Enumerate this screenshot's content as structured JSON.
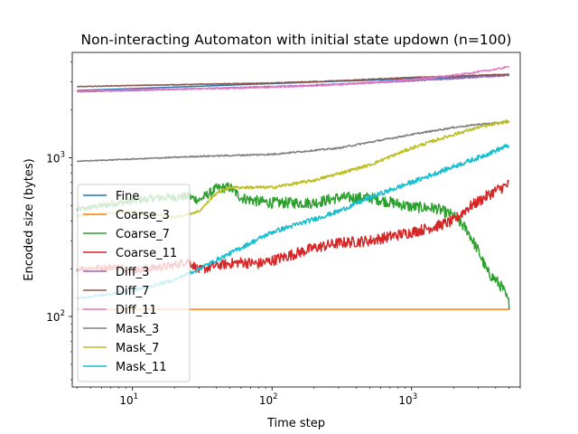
{
  "chart_data": {
    "type": "line",
    "title": "Non-interacting Automaton with initial state updown (n=100)",
    "xlabel": "Time step",
    "ylabel": "Encoded size (bytes)",
    "xscale": "log",
    "yscale": "log",
    "xlim": [
      3.7,
      6000
    ],
    "ylim": [
      36,
      4600
    ],
    "xticks": [
      {
        "value": 10,
        "base": "10",
        "exp": "1"
      },
      {
        "value": 100,
        "base": "10",
        "exp": "2"
      },
      {
        "value": 1000,
        "base": "10",
        "exp": "3"
      }
    ],
    "yticks": [
      {
        "value": 100,
        "base": "10",
        "exp": "2"
      },
      {
        "value": 1000,
        "base": "10",
        "exp": "3"
      }
    ],
    "grid": false,
    "legend_position": "lower-left",
    "series": [
      {
        "name": "Fine",
        "color": "#1f77b4",
        "noise": 0,
        "x": [
          4,
          10,
          100,
          1000,
          5000
        ],
        "y": [
          2650,
          2700,
          2850,
          3150,
          3300
        ]
      },
      {
        "name": "Coarse_3",
        "color": "#ff7f0e",
        "noise": 0,
        "x": [
          4,
          5000
        ],
        "y": [
          111,
          111
        ]
      },
      {
        "name": "Coarse_7",
        "color": "#2ca02c",
        "noise": 0.07,
        "x": [
          4,
          8,
          15,
          25,
          30,
          40,
          50,
          60,
          80,
          100,
          200,
          300,
          500,
          1000,
          1500,
          2000,
          2500,
          3000,
          3500,
          4000,
          4500,
          5000
        ],
        "y": [
          470,
          520,
          560,
          570,
          540,
          640,
          650,
          560,
          530,
          520,
          520,
          560,
          560,
          490,
          480,
          430,
          350,
          260,
          190,
          170,
          150,
          120
        ]
      },
      {
        "name": "Coarse_11",
        "color": "#d62728",
        "noise": 0.07,
        "x": [
          4,
          8,
          10,
          20,
          25,
          30,
          40,
          60,
          80,
          100,
          200,
          300,
          500,
          1000,
          1500,
          2000,
          2500,
          3000,
          4000,
          5000
        ],
        "y": [
          200,
          205,
          195,
          210,
          225,
          195,
          210,
          220,
          215,
          225,
          270,
          290,
          300,
          340,
          370,
          400,
          480,
          530,
          620,
          680
        ]
      },
      {
        "name": "Diff_3",
        "color": "#9467bd",
        "noise": 0.008,
        "x": [
          4,
          10,
          30,
          100,
          300,
          1000,
          2000,
          5000
        ],
        "y": [
          2600,
          2650,
          2720,
          2800,
          2900,
          3050,
          3150,
          3300
        ]
      },
      {
        "name": "Diff_7",
        "color": "#8c564b",
        "noise": 0.006,
        "x": [
          4,
          10,
          30,
          100,
          300,
          1000,
          3000,
          5000
        ],
        "y": [
          2800,
          2850,
          2900,
          2950,
          3050,
          3200,
          3300,
          3350
        ]
      },
      {
        "name": "Diff_11",
        "color": "#e377c2",
        "noise": 0.01,
        "x": [
          4,
          10,
          30,
          100,
          300,
          1000,
          2000,
          4000,
          5000
        ],
        "y": [
          2620,
          2680,
          2720,
          2780,
          2880,
          3100,
          3300,
          3600,
          3750
        ]
      },
      {
        "name": "Mask_3",
        "color": "#7f7f7f",
        "noise": 0.01,
        "x": [
          4,
          10,
          30,
          100,
          300,
          1000,
          2000,
          3000,
          5000
        ],
        "y": [
          950,
          980,
          1020,
          1050,
          1150,
          1400,
          1550,
          1620,
          1680
        ]
      },
      {
        "name": "Mask_7",
        "color": "#bcbd22",
        "noise": 0.02,
        "x": [
          4,
          10,
          20,
          30,
          40,
          50,
          100,
          200,
          500,
          1000,
          2000,
          3000,
          5000
        ],
        "y": [
          430,
          460,
          420,
          460,
          600,
          650,
          650,
          720,
          900,
          1150,
          1400,
          1550,
          1700
        ]
      },
      {
        "name": "Mask_11",
        "color": "#17becf",
        "noise": 0.03,
        "x": [
          4,
          10,
          20,
          30,
          50,
          100,
          200,
          300,
          500,
          1000,
          2000,
          3000,
          5000
        ],
        "y": [
          130,
          145,
          170,
          200,
          250,
          340,
          410,
          460,
          560,
          700,
          880,
          1000,
          1200
        ]
      }
    ]
  }
}
